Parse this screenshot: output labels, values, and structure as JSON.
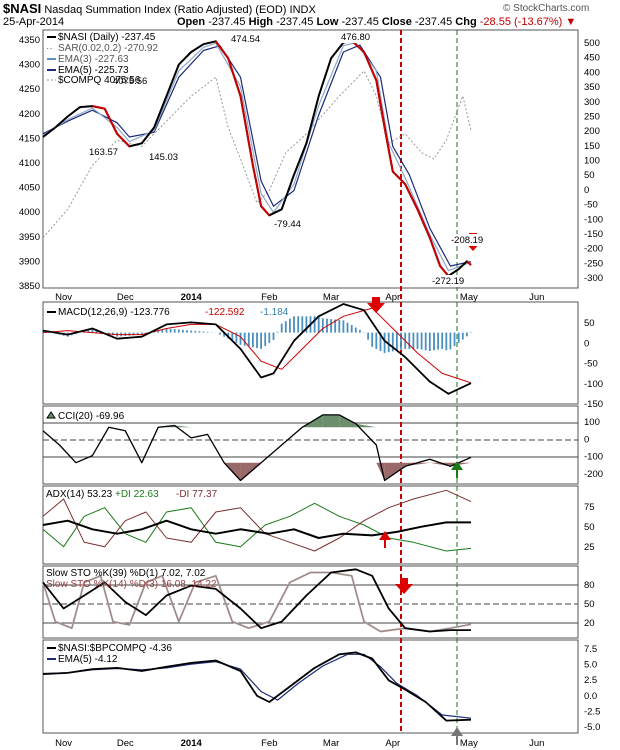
{
  "header": {
    "ticker": "$NASI",
    "name": "Nasdaq Summation Index (Ratio Adjusted) (EOD)",
    "exchange": "INDX",
    "date": "25-Apr-2014",
    "open_label": "Open",
    "open": "-237.45",
    "high_label": "High",
    "high": "-237.45",
    "low_label": "Low",
    "low": "-237.45",
    "close_label": "Close",
    "close": "-237.45",
    "chg_label": "Chg",
    "chg": "-28.55 (-13.67%)",
    "watermark": "© StockCharts.com"
  },
  "colors": {
    "red": "#cc0000",
    "blue": "#5c8fc0",
    "grey": "#888888",
    "green": "#1a7a1a",
    "maroon": "#7a3030"
  },
  "chart_data": [
    {
      "type": "line",
      "panel": "main",
      "legend": [
        "$NASI (Daily) -237.45",
        "SAR(0.02,0.2) -270.92",
        "EMA(3) -227.63",
        "EMA(5) -225.73",
        "$COMPQ 4075.56"
      ],
      "x_labels": [
        "Nov",
        "Dec",
        "2014",
        "Feb",
        "Mar",
        "Apr",
        "May",
        "Jun"
      ],
      "y_left_ticks": [
        "4350",
        "4300",
        "4250",
        "4200",
        "4150",
        "4100",
        "4050",
        "4000",
        "3950",
        "3900",
        "3850"
      ],
      "y_right_ticks": [
        "500",
        "450",
        "400",
        "350",
        "300",
        "250",
        "200",
        "150",
        "100",
        "50",
        "0",
        "-50",
        "-100",
        "-150",
        "-200",
        "-250",
        "-300"
      ],
      "y_right_range": [
        -310,
        510
      ],
      "annotations": [
        "474.54",
        "476.80",
        "163.57",
        "145.03",
        "-79.44",
        "-272.19",
        "-208.19",
        "4075.56"
      ],
      "nasi": [
        [
          0,
          170
        ],
        [
          6,
          200
        ],
        [
          12,
          235
        ],
        [
          18,
          265
        ],
        [
          24,
          268
        ],
        [
          30,
          260
        ],
        [
          36,
          180
        ],
        [
          42,
          140
        ],
        [
          48,
          150
        ],
        [
          54,
          200
        ],
        [
          60,
          300
        ],
        [
          66,
          400
        ],
        [
          72,
          440
        ],
        [
          78,
          465
        ],
        [
          84,
          474
        ],
        [
          90,
          420
        ],
        [
          96,
          300
        ],
        [
          102,
          80
        ],
        [
          106,
          -50
        ],
        [
          110,
          -79
        ],
        [
          116,
          -60
        ],
        [
          122,
          50
        ],
        [
          128,
          150
        ],
        [
          134,
          300
        ],
        [
          140,
          420
        ],
        [
          146,
          470
        ],
        [
          150,
          476
        ],
        [
          156,
          440
        ],
        [
          162,
          350
        ],
        [
          166,
          200
        ],
        [
          170,
          60
        ],
        [
          176,
          20
        ],
        [
          182,
          -60
        ],
        [
          188,
          -150
        ],
        [
          193,
          -240
        ],
        [
          197,
          -272
        ],
        [
          202,
          -250
        ],
        [
          206,
          -225
        ],
        [
          208,
          -237
        ]
      ],
      "ema3": [
        [
          0,
          175
        ],
        [
          12,
          225
        ],
        [
          24,
          262
        ],
        [
          36,
          200
        ],
        [
          42,
          155
        ],
        [
          54,
          190
        ],
        [
          66,
          380
        ],
        [
          78,
          455
        ],
        [
          84,
          468
        ],
        [
          96,
          330
        ],
        [
          106,
          -10
        ],
        [
          112,
          -70
        ],
        [
          122,
          20
        ],
        [
          134,
          270
        ],
        [
          146,
          460
        ],
        [
          152,
          470
        ],
        [
          162,
          380
        ],
        [
          168,
          150
        ],
        [
          176,
          40
        ],
        [
          188,
          -140
        ],
        [
          197,
          -255
        ],
        [
          208,
          -228
        ]
      ],
      "ema5": [
        [
          0,
          180
        ],
        [
          12,
          220
        ],
        [
          24,
          255
        ],
        [
          36,
          215
        ],
        [
          42,
          170
        ],
        [
          54,
          185
        ],
        [
          66,
          360
        ],
        [
          78,
          445
        ],
        [
          86,
          460
        ],
        [
          96,
          360
        ],
        [
          106,
          30
        ],
        [
          112,
          -50
        ],
        [
          122,
          0
        ],
        [
          134,
          240
        ],
        [
          146,
          440
        ],
        [
          154,
          462
        ],
        [
          164,
          360
        ],
        [
          170,
          140
        ],
        [
          178,
          50
        ],
        [
          188,
          -120
        ],
        [
          198,
          -240
        ],
        [
          208,
          -226
        ]
      ],
      "compq": [
        [
          0,
          -150
        ],
        [
          12,
          -60
        ],
        [
          24,
          80
        ],
        [
          36,
          160
        ],
        [
          48,
          140
        ],
        [
          60,
          220
        ],
        [
          72,
          300
        ],
        [
          84,
          360
        ],
        [
          90,
          200
        ],
        [
          96,
          100
        ],
        [
          104,
          -40
        ],
        [
          110,
          0
        ],
        [
          118,
          120
        ],
        [
          128,
          180
        ],
        [
          136,
          240
        ],
        [
          144,
          300
        ],
        [
          150,
          340
        ],
        [
          156,
          380
        ],
        [
          162,
          300
        ],
        [
          168,
          150
        ],
        [
          176,
          180
        ],
        [
          184,
          120
        ],
        [
          190,
          100
        ],
        [
          196,
          160
        ],
        [
          204,
          300
        ],
        [
          208,
          190
        ]
      ]
    },
    {
      "type": "line",
      "panel": "macd",
      "legend": [
        "MACD(12,26,9) -123.776",
        "-122.592",
        "-1.184"
      ],
      "y_ticks": [
        "50",
        "0",
        "-50",
        "-100",
        "-150"
      ],
      "y_range": [
        -175,
        75
      ],
      "macd": [
        [
          0,
          5
        ],
        [
          12,
          -5
        ],
        [
          24,
          10
        ],
        [
          36,
          -15
        ],
        [
          48,
          -10
        ],
        [
          60,
          20
        ],
        [
          72,
          25
        ],
        [
          84,
          20
        ],
        [
          96,
          -40
        ],
        [
          106,
          -110
        ],
        [
          112,
          -100
        ],
        [
          122,
          -20
        ],
        [
          134,
          40
        ],
        [
          146,
          70
        ],
        [
          156,
          55
        ],
        [
          166,
          -20
        ],
        [
          176,
          -60
        ],
        [
          188,
          -120
        ],
        [
          197,
          -150
        ],
        [
          208,
          -124
        ]
      ],
      "signal": [
        [
          0,
          0
        ],
        [
          12,
          5
        ],
        [
          24,
          0
        ],
        [
          36,
          -5
        ],
        [
          48,
          -5
        ],
        [
          60,
          10
        ],
        [
          72,
          20
        ],
        [
          84,
          20
        ],
        [
          96,
          -10
        ],
        [
          106,
          -70
        ],
        [
          116,
          -90
        ],
        [
          126,
          -40
        ],
        [
          136,
          10
        ],
        [
          146,
          40
        ],
        [
          160,
          60
        ],
        [
          170,
          10
        ],
        [
          182,
          -50
        ],
        [
          194,
          -100
        ],
        [
          208,
          -123
        ]
      ]
    },
    {
      "type": "line",
      "panel": "cci",
      "legend": [
        "CCI(20) -69.96"
      ],
      "y_ticks": [
        "100",
        "0",
        "-100",
        "-200"
      ],
      "y_range": [
        -220,
        220
      ],
      "cci": [
        [
          0,
          80
        ],
        [
          8,
          0
        ],
        [
          16,
          -100
        ],
        [
          24,
          -60
        ],
        [
          32,
          100
        ],
        [
          40,
          80
        ],
        [
          48,
          -100
        ],
        [
          56,
          100
        ],
        [
          64,
          110
        ],
        [
          72,
          40
        ],
        [
          80,
          60
        ],
        [
          88,
          -100
        ],
        [
          96,
          -200
        ],
        [
          106,
          -100
        ],
        [
          116,
          0
        ],
        [
          126,
          100
        ],
        [
          136,
          170
        ],
        [
          144,
          170
        ],
        [
          152,
          120
        ],
        [
          162,
          0
        ],
        [
          166,
          -200
        ],
        [
          176,
          -120
        ],
        [
          188,
          -80
        ],
        [
          198,
          -120
        ],
        [
          208,
          -70
        ]
      ]
    },
    {
      "type": "line",
      "panel": "adx",
      "legend": [
        "ADX(14) 53.23",
        "+DI 22.63",
        "-DI 77.37"
      ],
      "y_ticks": [
        "75",
        "50",
        "25"
      ],
      "y_range": [
        5,
        95
      ],
      "adx": [
        [
          0,
          50
        ],
        [
          12,
          55
        ],
        [
          24,
          45
        ],
        [
          36,
          40
        ],
        [
          48,
          45
        ],
        [
          60,
          55
        ],
        [
          72,
          45
        ],
        [
          84,
          40
        ],
        [
          96,
          45
        ],
        [
          110,
          40
        ],
        [
          122,
          45
        ],
        [
          134,
          35
        ],
        [
          146,
          40
        ],
        [
          160,
          38
        ],
        [
          172,
          42
        ],
        [
          184,
          48
        ],
        [
          196,
          53
        ],
        [
          208,
          53
        ]
      ],
      "plus_di": [
        [
          0,
          45
        ],
        [
          10,
          25
        ],
        [
          20,
          60
        ],
        [
          30,
          70
        ],
        [
          40,
          40
        ],
        [
          50,
          30
        ],
        [
          60,
          65
        ],
        [
          72,
          70
        ],
        [
          84,
          30
        ],
        [
          96,
          25
        ],
        [
          108,
          50
        ],
        [
          120,
          60
        ],
        [
          132,
          75
        ],
        [
          144,
          60
        ],
        [
          156,
          50
        ],
        [
          168,
          35
        ],
        [
          180,
          30
        ],
        [
          196,
          20
        ],
        [
          208,
          23
        ]
      ],
      "minus_di": [
        [
          0,
          60
        ],
        [
          10,
          80
        ],
        [
          20,
          30
        ],
        [
          30,
          25
        ],
        [
          40,
          55
        ],
        [
          50,
          65
        ],
        [
          60,
          35
        ],
        [
          72,
          30
        ],
        [
          84,
          65
        ],
        [
          96,
          70
        ],
        [
          108,
          40
        ],
        [
          120,
          30
        ],
        [
          132,
          20
        ],
        [
          144,
          35
        ],
        [
          156,
          55
        ],
        [
          168,
          70
        ],
        [
          180,
          80
        ],
        [
          196,
          90
        ],
        [
          208,
          77
        ]
      ]
    },
    {
      "type": "line",
      "panel": "sto",
      "legend": [
        "Slow STO %K(39) %D(1) 7.02, 7.02",
        "Slow STO %K(14) %D(3) 16.08, 14.22"
      ],
      "y_ticks": [
        "80",
        "50",
        "20"
      ],
      "y_range": [
        -5,
        105
      ],
      "sto39": [
        [
          0,
          80
        ],
        [
          10,
          40
        ],
        [
          20,
          60
        ],
        [
          30,
          80
        ],
        [
          40,
          50
        ],
        [
          50,
          30
        ],
        [
          60,
          60
        ],
        [
          72,
          75
        ],
        [
          84,
          70
        ],
        [
          96,
          40
        ],
        [
          106,
          10
        ],
        [
          116,
          20
        ],
        [
          128,
          60
        ],
        [
          140,
          95
        ],
        [
          152,
          100
        ],
        [
          160,
          90
        ],
        [
          168,
          40
        ],
        [
          176,
          10
        ],
        [
          188,
          5
        ],
        [
          198,
          7
        ],
        [
          208,
          7
        ]
      ],
      "sto14": [
        [
          0,
          80
        ],
        [
          6,
          20
        ],
        [
          14,
          10
        ],
        [
          20,
          80
        ],
        [
          28,
          90
        ],
        [
          34,
          20
        ],
        [
          42,
          15
        ],
        [
          50,
          80
        ],
        [
          58,
          90
        ],
        [
          66,
          20
        ],
        [
          74,
          80
        ],
        [
          84,
          90
        ],
        [
          92,
          20
        ],
        [
          100,
          10
        ],
        [
          110,
          20
        ],
        [
          120,
          80
        ],
        [
          130,
          95
        ],
        [
          140,
          95
        ],
        [
          150,
          90
        ],
        [
          156,
          20
        ],
        [
          164,
          5
        ],
        [
          176,
          10
        ],
        [
          188,
          5
        ],
        [
          198,
          10
        ],
        [
          208,
          16
        ]
      ]
    },
    {
      "type": "line",
      "panel": "ratio",
      "legend": [
        "$NASI:$BPCOMPQ -4.36",
        "EMA(5) -4.12"
      ],
      "y_ticks": [
        "7.5",
        "5.0",
        "2.5",
        "0.0",
        "-2.5",
        "-5.0"
      ],
      "y_range": [
        -6.5,
        8.5
      ],
      "ratio": [
        [
          0,
          3
        ],
        [
          12,
          3.2
        ],
        [
          24,
          3.8
        ],
        [
          36,
          4
        ],
        [
          48,
          3.5
        ],
        [
          60,
          4.2
        ],
        [
          72,
          4.8
        ],
        [
          84,
          5.2
        ],
        [
          96,
          3.5
        ],
        [
          104,
          -0.5
        ],
        [
          110,
          -1.5
        ],
        [
          120,
          1
        ],
        [
          132,
          4
        ],
        [
          144,
          6.2
        ],
        [
          152,
          6.5
        ],
        [
          160,
          5.5
        ],
        [
          168,
          2
        ],
        [
          176,
          0.5
        ],
        [
          186,
          -1.5
        ],
        [
          196,
          -4.5
        ],
        [
          208,
          -4.36
        ]
      ],
      "ema5": [
        [
          0,
          3.1
        ],
        [
          12,
          3.2
        ],
        [
          24,
          3.7
        ],
        [
          36,
          3.9
        ],
        [
          48,
          3.7
        ],
        [
          60,
          4
        ],
        [
          72,
          4.6
        ],
        [
          84,
          5
        ],
        [
          96,
          3.8
        ],
        [
          106,
          0.2
        ],
        [
          114,
          -1.2
        ],
        [
          124,
          1.5
        ],
        [
          136,
          4.3
        ],
        [
          148,
          6.2
        ],
        [
          156,
          6.2
        ],
        [
          164,
          4.2
        ],
        [
          172,
          1.5
        ],
        [
          182,
          -0.5
        ],
        [
          194,
          -3.6
        ],
        [
          208,
          -4.12
        ]
      ]
    }
  ]
}
